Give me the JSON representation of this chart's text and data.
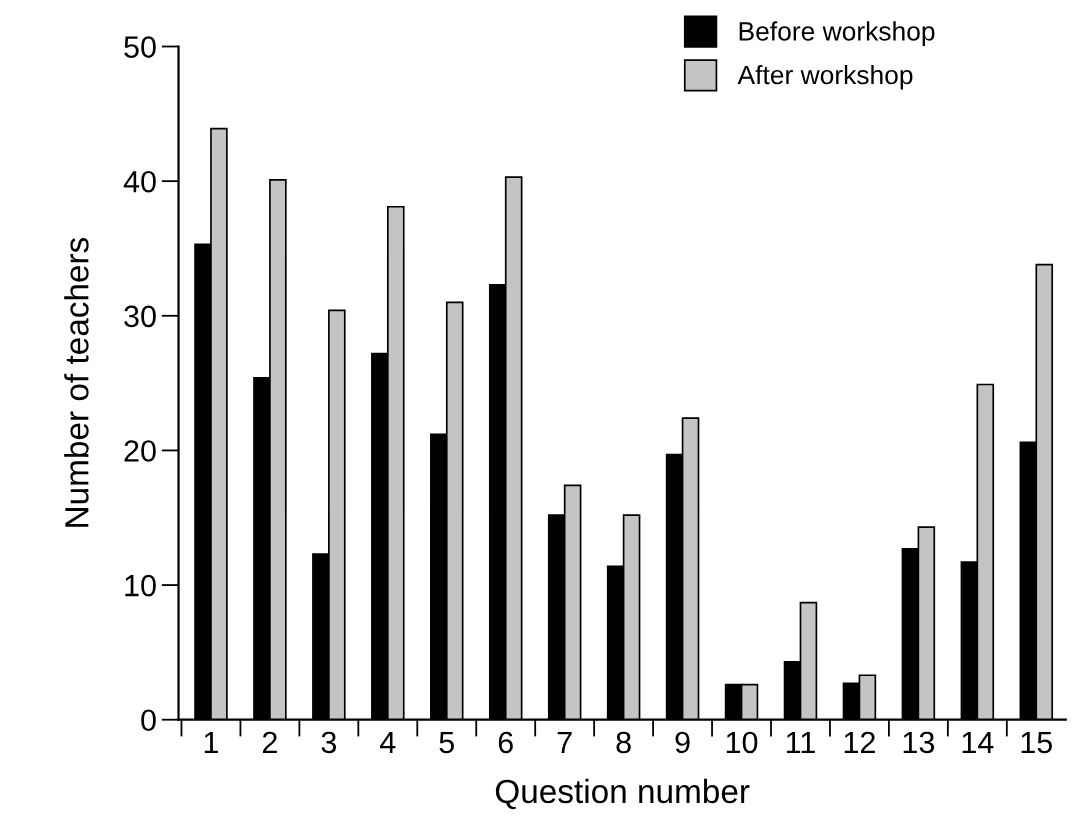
{
  "chart_data": {
    "type": "bar",
    "xlabel": "Question number",
    "ylabel": "Number of teachers",
    "categories": [
      "1",
      "2",
      "3",
      "4",
      "5",
      "6",
      "7",
      "8",
      "9",
      "10",
      "11",
      "12",
      "13",
      "14",
      "15"
    ],
    "series": [
      {
        "name": "Before workshop",
        "color": "#000000",
        "values": [
          35.3,
          25.4,
          12.3,
          27.2,
          21.2,
          32.3,
          15.2,
          11.4,
          19.7,
          2.6,
          4.3,
          2.7,
          12.7,
          11.7,
          20.6
        ]
      },
      {
        "name": "After workshop",
        "color": "#c4c4c4",
        "values": [
          43.9,
          40.1,
          30.4,
          38.1,
          31.0,
          40.3,
          17.4,
          15.2,
          22.4,
          2.6,
          8.7,
          3.3,
          14.3,
          24.9,
          33.8
        ]
      }
    ],
    "ylim": [
      0,
      50
    ],
    "yticks": [
      0,
      10,
      20,
      30,
      40,
      50
    ],
    "grid": false,
    "legend": "top right"
  }
}
